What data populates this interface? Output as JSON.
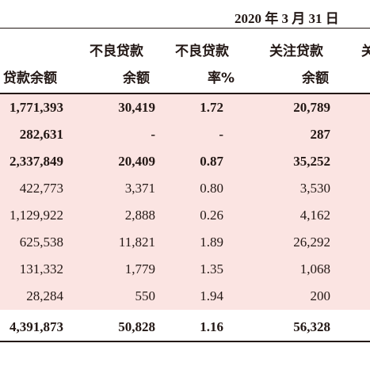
{
  "date": "2020 年 3 月 31 日",
  "headers": {
    "col1_line2": "贷款余额",
    "col2_line1": "不良贷款",
    "col2_line2": "余额",
    "col3_line1": "不良贷款",
    "col3_line2": "率%",
    "col4_line1": "关注贷款",
    "col4_line2": "余额",
    "col5_partial": "关"
  },
  "rows": [
    {
      "c1": "1,771,393",
      "c2": "30,419",
      "c3": "1.72",
      "c4": "20,789",
      "pink": true,
      "bold": true
    },
    {
      "c1": "282,631",
      "c2": "-",
      "c3": "-",
      "c4": "287",
      "pink": true,
      "bold": true
    },
    {
      "c1": "2,337,849",
      "c2": "20,409",
      "c3": "0.87",
      "c4": "35,252",
      "pink": true,
      "bold": true
    },
    {
      "c1": "422,773",
      "c2": "3,371",
      "c3": "0.80",
      "c4": "3,530",
      "pink": true,
      "bold": false
    },
    {
      "c1": "1,129,922",
      "c2": "2,888",
      "c3": "0.26",
      "c4": "4,162",
      "pink": true,
      "bold": false
    },
    {
      "c1": "625,538",
      "c2": "11,821",
      "c3": "1.89",
      "c4": "26,292",
      "pink": true,
      "bold": false
    },
    {
      "c1": "131,332",
      "c2": "1,779",
      "c3": "1.35",
      "c4": "1,068",
      "pink": true,
      "bold": false
    },
    {
      "c1": "28,284",
      "c2": "550",
      "c3": "1.94",
      "c4": "200",
      "pink": true,
      "bold": false
    },
    {
      "c1": "4,391,873",
      "c2": "50,828",
      "c3": "1.16",
      "c4": "56,328",
      "pink": false,
      "bold": true
    }
  ]
}
